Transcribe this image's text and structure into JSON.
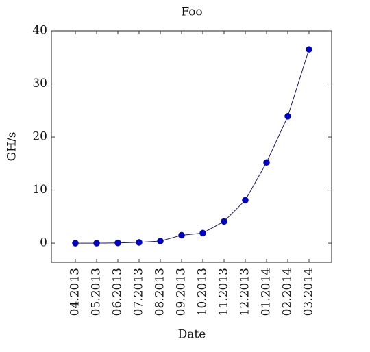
{
  "chart_data": {
    "type": "line",
    "title": "Foo",
    "x_label": "Date",
    "y_label": "GH/s",
    "categories": [
      "04.2013",
      "05.2013",
      "06.2013",
      "07.2013",
      "08.2013",
      "09.2013",
      "10.2013",
      "11.2013",
      "12.2013",
      "01.2014",
      "02.2014",
      "03.2014"
    ],
    "values": [
      0,
      0,
      0.05,
      0.15,
      0.4,
      1.5,
      1.9,
      4.1,
      8.1,
      15.2,
      23.9,
      36.5
    ],
    "color": "#0000cc",
    "line_color": "#1c1c6b",
    "ylim": [
      -3.6,
      40
    ],
    "yticks": [
      0,
      10,
      20,
      30,
      40
    ],
    "grid": false
  }
}
